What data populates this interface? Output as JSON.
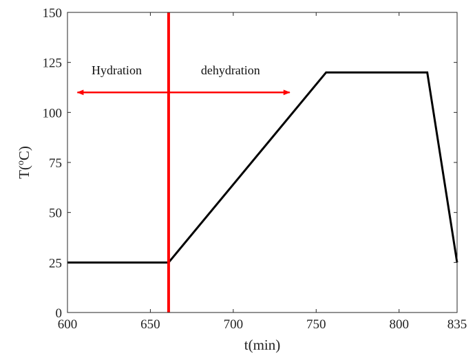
{
  "chart_data": {
    "type": "line",
    "xlabel": "t(min)",
    "ylabel": "T(",
    "ylabel_sup": "o",
    "ylabel_tail": "C)",
    "xlim": [
      600,
      835
    ],
    "ylim": [
      0,
      150
    ],
    "xticks": [
      600,
      650,
      700,
      750,
      800,
      835
    ],
    "yticks": [
      0,
      25,
      50,
      75,
      100,
      125,
      150
    ],
    "grid": false,
    "series": [
      {
        "color": "#000000",
        "x": [
          600,
          661,
          756,
          817,
          835
        ],
        "y": [
          25,
          25,
          120,
          120,
          25
        ]
      }
    ],
    "vline": {
      "x": 661,
      "color": "#ff0000"
    },
    "annotations": {
      "arrow_y": 110,
      "color": "#ff0000",
      "left": {
        "label": "Hydration",
        "from_x": 661,
        "to_x": 606
      },
      "right": {
        "label": "dehydration",
        "from_x": 661,
        "to_x": 734
      },
      "label_y": 119
    }
  }
}
